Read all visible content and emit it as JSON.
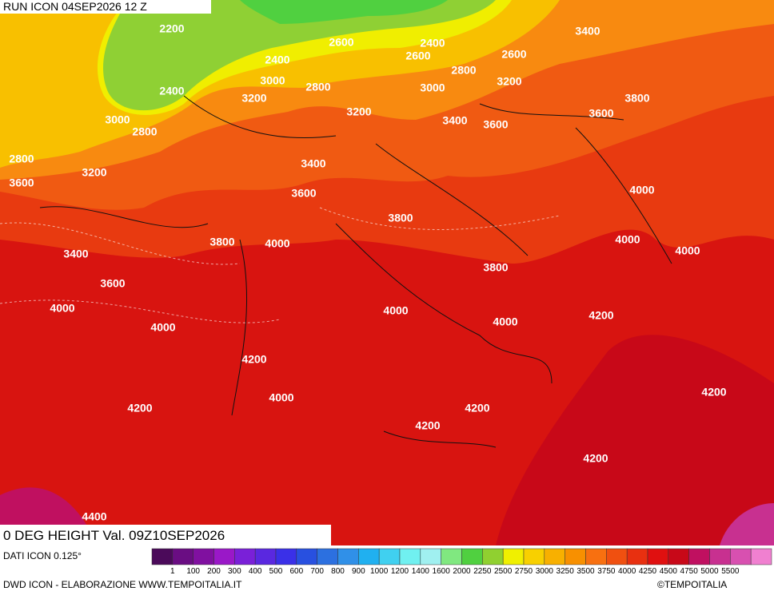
{
  "header": {
    "run": "RUN ICON 04SEP2026 12 Z",
    "field": "0 DEG HEIGHT Val. 09Z10SEP2026"
  },
  "contour_labels": [
    2200,
    2600,
    2400,
    3400,
    2400,
    2600,
    2600,
    3000,
    2800,
    2800,
    3200,
    2400,
    3000,
    3800,
    3200,
    3200,
    3000,
    3400,
    3600,
    3600,
    2800,
    2800,
    3400,
    3200,
    3600,
    3600,
    4000,
    3800,
    3800,
    4000,
    4000,
    4000,
    3400,
    3800,
    3600,
    4000,
    4000,
    4200,
    4000,
    4000,
    4200,
    4000,
    4200,
    4200,
    4200,
    4200,
    4200,
    4400
  ],
  "legend": {
    "colors": [
      "#4b0a5a",
      "#6a0d83",
      "#8010a0",
      "#9a18c8",
      "#7a20d8",
      "#5a28e0",
      "#3a30e8",
      "#2850e0",
      "#2c70e0",
      "#3090e8",
      "#20b0f0",
      "#40d0f0",
      "#70f0f0",
      "#a0f0f0",
      "#80e880",
      "#50d040",
      "#90d030",
      "#f0f000",
      "#f8d000",
      "#f8b000",
      "#f89000",
      "#f87010",
      "#f05010",
      "#e83010",
      "#e01010",
      "#c80818",
      "#c01060",
      "#c83090",
      "#d850b0",
      "#f080d0"
    ],
    "labels": [
      1,
      100,
      200,
      300,
      400,
      500,
      600,
      700,
      800,
      900,
      1000,
      1200,
      1400,
      1600,
      2000,
      2250,
      2500,
      2750,
      3000,
      3250,
      3500,
      3750,
      4000,
      4250,
      4500,
      4750,
      5000,
      5500
    ]
  },
  "footer": {
    "source": "DATI ICON 0.125°",
    "credit": "DWD ICON - ELABORAZIONE WWW.TEMPOITALIA.IT",
    "logo": "©TEMPOITALIA"
  }
}
